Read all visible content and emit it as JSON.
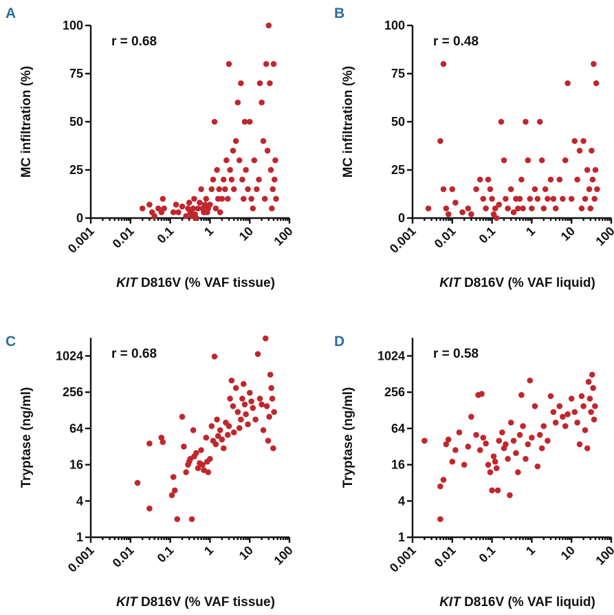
{
  "chart_data": [
    {
      "panel": "A",
      "type": "scatter",
      "annotation": "r = 0.68",
      "ylabel": "MC infiltration (%)",
      "xlabel_italic": "KIT",
      "xlabel_rest": " D816V (% VAF tissue)",
      "xscale": "log",
      "yscale": "linear",
      "xlim": [
        0.001,
        100
      ],
      "ylim": [
        0,
        100
      ],
      "xticks": [
        "0.001",
        "0.01",
        "0.1",
        "1",
        "10",
        "100"
      ],
      "yticks": [
        "0",
        "25",
        "50",
        "75",
        "100"
      ],
      "yticks_values": [
        0,
        25,
        50,
        75,
        100
      ],
      "color": "#c0272d",
      "points": [
        [
          0.02,
          5
        ],
        [
          0.03,
          7
        ],
        [
          0.035,
          3
        ],
        [
          0.04,
          1
        ],
        [
          0.05,
          5
        ],
        [
          0.06,
          3
        ],
        [
          0.065,
          10
        ],
        [
          0.07,
          5
        ],
        [
          0.12,
          3
        ],
        [
          0.14,
          7
        ],
        [
          0.16,
          3
        ],
        [
          0.2,
          6
        ],
        [
          0.25,
          1
        ],
        [
          0.28,
          5
        ],
        [
          0.3,
          8
        ],
        [
          0.32,
          3
        ],
        [
          0.35,
          1
        ],
        [
          0.38,
          5
        ],
        [
          0.4,
          10
        ],
        [
          0.42,
          2
        ],
        [
          0.45,
          0
        ],
        [
          0.5,
          5
        ],
        [
          0.55,
          8
        ],
        [
          0.6,
          15
        ],
        [
          0.65,
          5
        ],
        [
          0.7,
          3
        ],
        [
          0.75,
          7
        ],
        [
          0.8,
          10
        ],
        [
          0.85,
          3
        ],
        [
          0.9,
          5
        ],
        [
          1.0,
          7
        ],
        [
          1.1,
          15
        ],
        [
          1.2,
          20
        ],
        [
          1.3,
          50
        ],
        [
          1.4,
          5
        ],
        [
          1.5,
          25
        ],
        [
          1.6,
          10
        ],
        [
          1.7,
          15
        ],
        [
          1.8,
          3
        ],
        [
          2.0,
          10
        ],
        [
          2.2,
          20
        ],
        [
          2.4,
          15
        ],
        [
          2.6,
          30
        ],
        [
          2.8,
          10
        ],
        [
          3.0,
          80
        ],
        [
          3.2,
          25
        ],
        [
          3.5,
          20
        ],
        [
          3.8,
          35
        ],
        [
          4.0,
          15
        ],
        [
          4.5,
          40
        ],
        [
          5.0,
          60
        ],
        [
          5.5,
          30
        ],
        [
          6.0,
          70
        ],
        [
          6.5,
          20
        ],
        [
          7.0,
          10
        ],
        [
          7.5,
          50
        ],
        [
          8.0,
          25
        ],
        [
          9.0,
          15
        ],
        [
          10,
          50
        ],
        [
          11,
          10
        ],
        [
          12,
          5
        ],
        [
          13,
          30
        ],
        [
          15,
          15
        ],
        [
          17,
          20
        ],
        [
          18,
          70
        ],
        [
          20,
          60
        ],
        [
          22,
          40
        ],
        [
          24,
          10
        ],
        [
          26,
          80
        ],
        [
          28,
          35
        ],
        [
          30,
          100
        ],
        [
          32,
          70
        ],
        [
          34,
          25
        ],
        [
          36,
          5
        ],
        [
          38,
          15
        ],
        [
          40,
          80
        ],
        [
          42,
          20
        ],
        [
          44,
          30
        ],
        [
          46,
          10
        ]
      ]
    },
    {
      "panel": "B",
      "type": "scatter",
      "annotation": "r = 0.48",
      "ylabel": "MC infiltration (%)",
      "xlabel_italic": "KIT",
      "xlabel_rest": " D816V (% VAF liquid)",
      "xscale": "log",
      "yscale": "linear",
      "xlim": [
        0.001,
        100
      ],
      "ylim": [
        0,
        100
      ],
      "xticks": [
        "0.001",
        "0.01",
        "0.1",
        "1",
        "10",
        "100"
      ],
      "yticks": [
        "0",
        "25",
        "50",
        "75",
        "100"
      ],
      "yticks_values": [
        0,
        25,
        50,
        75,
        100
      ],
      "color": "#c0272d",
      "points": [
        [
          0.0025,
          5
        ],
        [
          0.005,
          40
        ],
        [
          0.006,
          80
        ],
        [
          0.006,
          15
        ],
        [
          0.007,
          5
        ],
        [
          0.008,
          2
        ],
        [
          0.01,
          15
        ],
        [
          0.012,
          8
        ],
        [
          0.018,
          3
        ],
        [
          0.025,
          5
        ],
        [
          0.03,
          2
        ],
        [
          0.04,
          15
        ],
        [
          0.05,
          20
        ],
        [
          0.06,
          10
        ],
        [
          0.07,
          5
        ],
        [
          0.08,
          20
        ],
        [
          0.09,
          15
        ],
        [
          0.1,
          10
        ],
        [
          0.11,
          2
        ],
        [
          0.12,
          5
        ],
        [
          0.13,
          0
        ],
        [
          0.15,
          7
        ],
        [
          0.17,
          50
        ],
        [
          0.2,
          30
        ],
        [
          0.22,
          10
        ],
        [
          0.25,
          5
        ],
        [
          0.3,
          15
        ],
        [
          0.35,
          3
        ],
        [
          0.4,
          10
        ],
        [
          0.45,
          5
        ],
        [
          0.5,
          10
        ],
        [
          0.55,
          20
        ],
        [
          0.6,
          5
        ],
        [
          0.7,
          50
        ],
        [
          0.8,
          30
        ],
        [
          0.9,
          10
        ],
        [
          1.0,
          5
        ],
        [
          1.2,
          15
        ],
        [
          1.4,
          10
        ],
        [
          1.6,
          50
        ],
        [
          1.8,
          30
        ],
        [
          2.0,
          5
        ],
        [
          2.2,
          15
        ],
        [
          2.5,
          10
        ],
        [
          3.0,
          20
        ],
        [
          3.5,
          10
        ],
        [
          4.0,
          5
        ],
        [
          5.0,
          20
        ],
        [
          6.0,
          10
        ],
        [
          7.0,
          30
        ],
        [
          8.0,
          70
        ],
        [
          10,
          10
        ],
        [
          12,
          40
        ],
        [
          14,
          20
        ],
        [
          16,
          35
        ],
        [
          18,
          5
        ],
        [
          20,
          40
        ],
        [
          22,
          10
        ],
        [
          25,
          25
        ],
        [
          28,
          15
        ],
        [
          30,
          5
        ],
        [
          32,
          35
        ],
        [
          34,
          20
        ],
        [
          36,
          80
        ],
        [
          38,
          10
        ],
        [
          40,
          25
        ],
        [
          42,
          70
        ],
        [
          44,
          15
        ]
      ]
    },
    {
      "panel": "C",
      "type": "scatter",
      "annotation": "r = 0.68",
      "ylabel": "Tryptase (ng/ml)",
      "xlabel_italic": "KIT",
      "xlabel_rest": " D816V (% VAF tissue)",
      "xscale": "log",
      "yscale": "log2",
      "xlim": [
        0.001,
        100
      ],
      "ylim": [
        1,
        2048
      ],
      "xticks": [
        "0.001",
        "0.01",
        "0.1",
        "1",
        "10",
        "100"
      ],
      "yticks": [
        "1",
        "4",
        "16",
        "64",
        "256",
        "1024"
      ],
      "yticks_values": [
        1,
        4,
        16,
        64,
        256,
        1024
      ],
      "color": "#c0272d",
      "points": [
        [
          0.015,
          8
        ],
        [
          0.03,
          3
        ],
        [
          0.03,
          36
        ],
        [
          0.06,
          45
        ],
        [
          0.065,
          38
        ],
        [
          0.11,
          5
        ],
        [
          0.12,
          10
        ],
        [
          0.13,
          6
        ],
        [
          0.15,
          2
        ],
        [
          0.2,
          100
        ],
        [
          0.22,
          32
        ],
        [
          0.25,
          12
        ],
        [
          0.28,
          16
        ],
        [
          0.3,
          18
        ],
        [
          0.32,
          20
        ],
        [
          0.35,
          2
        ],
        [
          0.38,
          60
        ],
        [
          0.4,
          22
        ],
        [
          0.45,
          25
        ],
        [
          0.5,
          14
        ],
        [
          0.55,
          17
        ],
        [
          0.6,
          28
        ],
        [
          0.65,
          16
        ],
        [
          0.7,
          13
        ],
        [
          0.8,
          45
        ],
        [
          0.85,
          18
        ],
        [
          0.9,
          12
        ],
        [
          1.0,
          20
        ],
        [
          1.1,
          70
        ],
        [
          1.2,
          40
        ],
        [
          1.3,
          1000
        ],
        [
          1.4,
          35
        ],
        [
          1.5,
          90
        ],
        [
          1.6,
          48
        ],
        [
          1.8,
          60
        ],
        [
          2.0,
          42
        ],
        [
          2.2,
          30
        ],
        [
          2.5,
          80
        ],
        [
          2.8,
          50
        ],
        [
          3.0,
          70
        ],
        [
          3.2,
          200
        ],
        [
          3.5,
          400
        ],
        [
          3.8,
          150
        ],
        [
          4.0,
          55
        ],
        [
          4.5,
          300
        ],
        [
          5.0,
          120
        ],
        [
          5.5,
          65
        ],
        [
          6.0,
          90
        ],
        [
          6.5,
          200
        ],
        [
          7.0,
          350
        ],
        [
          7.5,
          160
        ],
        [
          8.0,
          110
        ],
        [
          9.0,
          75
        ],
        [
          10,
          250
        ],
        [
          11,
          180
        ],
        [
          12,
          140
        ],
        [
          14,
          90
        ],
        [
          16,
          1100
        ],
        [
          18,
          200
        ],
        [
          20,
          160
        ],
        [
          22,
          60
        ],
        [
          25,
          2000
        ],
        [
          27,
          150
        ],
        [
          29,
          40
        ],
        [
          31,
          100
        ],
        [
          33,
          500
        ],
        [
          35,
          300
        ],
        [
          37,
          200
        ],
        [
          39,
          30
        ],
        [
          41,
          120
        ]
      ]
    },
    {
      "panel": "D",
      "type": "scatter",
      "annotation": "r = 0.58",
      "ylabel": "Tryptase (ng/ml)",
      "xlabel_italic": "KIT",
      "xlabel_rest": " D816V (% VAF liquid)",
      "xscale": "log",
      "yscale": "log2",
      "xlim": [
        0.001,
        100
      ],
      "ylim": [
        1,
        2048
      ],
      "xticks": [
        "0.001",
        "0.01",
        "0.1",
        "1",
        "10",
        "100"
      ],
      "yticks": [
        "1",
        "4",
        "16",
        "64",
        "256",
        "1024"
      ],
      "yticks_values": [
        1,
        4,
        16,
        64,
        256,
        1024
      ],
      "color": "#c0272d",
      "points": [
        [
          0.002,
          40
        ],
        [
          0.005,
          2
        ],
        [
          0.005,
          7
        ],
        [
          0.006,
          9
        ],
        [
          0.007,
          35
        ],
        [
          0.008,
          42
        ],
        [
          0.01,
          18
        ],
        [
          0.012,
          28
        ],
        [
          0.015,
          55
        ],
        [
          0.02,
          16
        ],
        [
          0.025,
          32
        ],
        [
          0.03,
          100
        ],
        [
          0.04,
          50
        ],
        [
          0.045,
          230
        ],
        [
          0.05,
          28
        ],
        [
          0.055,
          240
        ],
        [
          0.06,
          45
        ],
        [
          0.07,
          36
        ],
        [
          0.08,
          16
        ],
        [
          0.09,
          12
        ],
        [
          0.1,
          6
        ],
        [
          0.11,
          22
        ],
        [
          0.12,
          18
        ],
        [
          0.13,
          14
        ],
        [
          0.14,
          6
        ],
        [
          0.15,
          40
        ],
        [
          0.18,
          55
        ],
        [
          0.2,
          30
        ],
        [
          0.22,
          35
        ],
        [
          0.25,
          20
        ],
        [
          0.28,
          5
        ],
        [
          0.3,
          80
        ],
        [
          0.35,
          40
        ],
        [
          0.4,
          25
        ],
        [
          0.45,
          12
        ],
        [
          0.5,
          50
        ],
        [
          0.55,
          230
        ],
        [
          0.6,
          70
        ],
        [
          0.7,
          20
        ],
        [
          0.8,
          35
        ],
        [
          0.9,
          400
        ],
        [
          1.0,
          45
        ],
        [
          1.2,
          150
        ],
        [
          1.4,
          15
        ],
        [
          1.6,
          50
        ],
        [
          1.8,
          30
        ],
        [
          2.0,
          70
        ],
        [
          2.5,
          40
        ],
        [
          3.0,
          220
        ],
        [
          3.5,
          120
        ],
        [
          4.0,
          80
        ],
        [
          5.0,
          150
        ],
        [
          6.0,
          100
        ],
        [
          7.0,
          70
        ],
        [
          8.0,
          110
        ],
        [
          10,
          200
        ],
        [
          12,
          120
        ],
        [
          14,
          80
        ],
        [
          16,
          35
        ],
        [
          18,
          220
        ],
        [
          20,
          150
        ],
        [
          22,
          60
        ],
        [
          25,
          30
        ],
        [
          27,
          380
        ],
        [
          29,
          200
        ],
        [
          31,
          120
        ],
        [
          33,
          500
        ],
        [
          35,
          300
        ],
        [
          37,
          90
        ],
        [
          39,
          150
        ]
      ]
    }
  ]
}
